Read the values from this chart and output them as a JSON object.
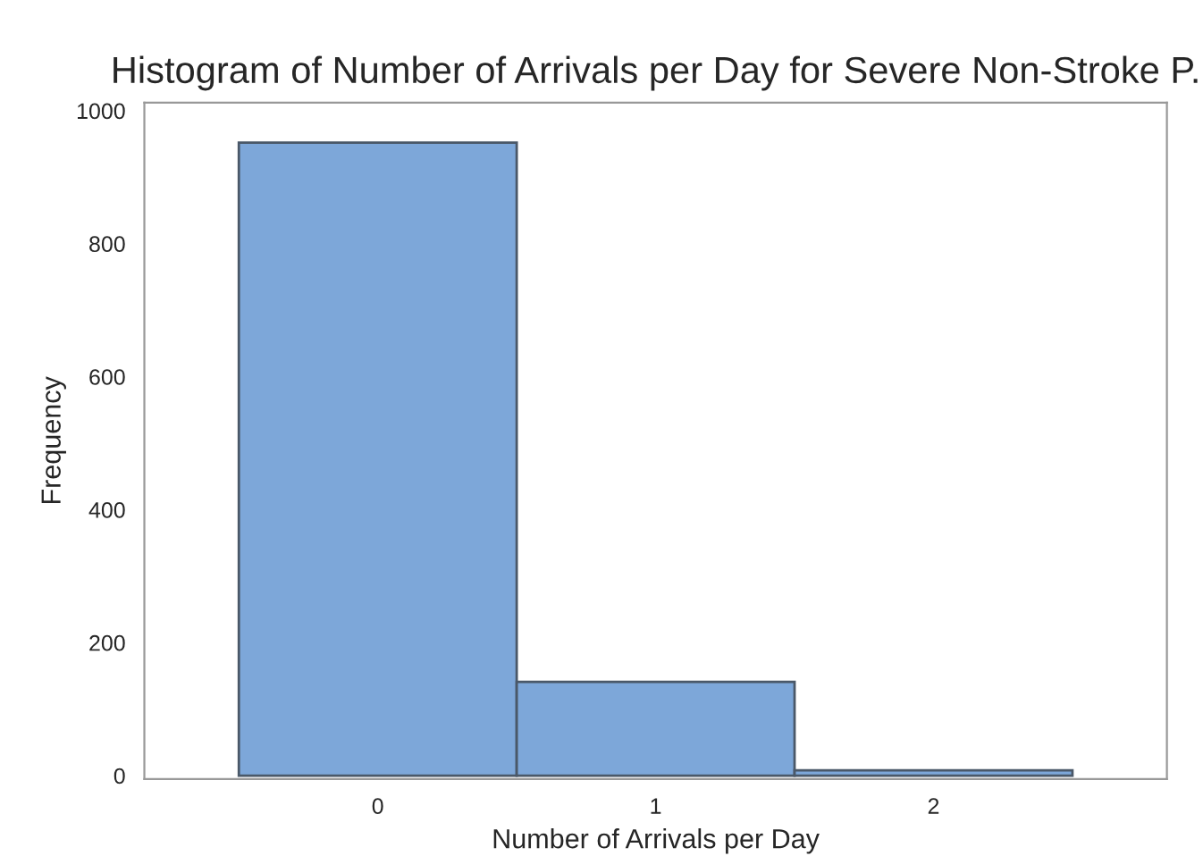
{
  "chart_data": {
    "type": "histogram",
    "title": "Histogram of Number of Arrivals per Day for Severe Non-Stroke P.",
    "xlabel": "Number of Arrivals per Day",
    "ylabel": "Frequency",
    "bins": [
      -0.5,
      0.5,
      1.5,
      2.5
    ],
    "values": [
      952,
      141,
      8
    ],
    "color": "#7da7d9",
    "xlim": [
      -0.84,
      2.84
    ],
    "ylim": [
      -5,
      1012
    ],
    "xticks": [
      0,
      1,
      2
    ],
    "yticks": [
      0,
      200,
      400,
      600,
      800,
      1000
    ]
  }
}
